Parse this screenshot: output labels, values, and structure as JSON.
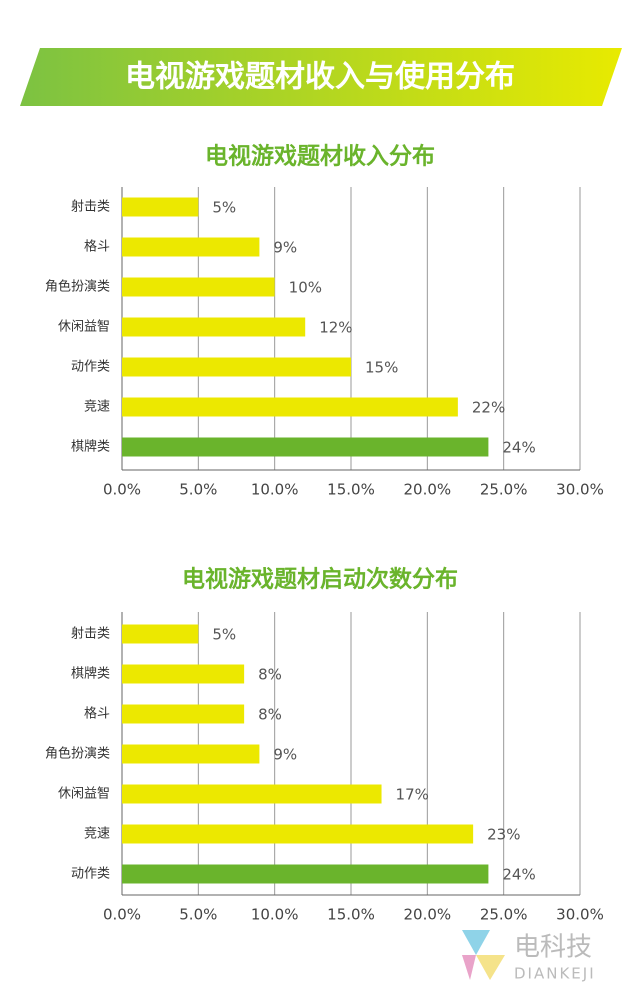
{
  "title": "电视游戏题材收入与使用分布",
  "logo": {
    "name": "电科技",
    "pinyin": "DIANKEJI"
  },
  "chart_data": [
    {
      "type": "bar",
      "orientation": "horizontal",
      "title": "电视游戏题材收入分布",
      "categories": [
        "射击类",
        "格斗",
        "角色扮演类",
        "休闲益智",
        "动作类",
        "竞速",
        "棋牌类"
      ],
      "values": [
        5,
        9,
        10,
        12,
        15,
        22,
        24
      ],
      "value_labels": [
        "5%",
        "9%",
        "10%",
        "12%",
        "15%",
        "22%",
        "24%"
      ],
      "colors": [
        "#ece800",
        "#ece800",
        "#ece800",
        "#ece800",
        "#ece800",
        "#ece800",
        "#6ab42c"
      ],
      "xlim": [
        0,
        30
      ],
      "xticks": [
        {
          "value": 0,
          "label": "0.0%"
        },
        {
          "value": 5,
          "label": "5.0%"
        },
        {
          "value": 10,
          "label": "10.0%"
        },
        {
          "value": 15,
          "label": "15.0%"
        },
        {
          "value": 20,
          "label": "20.0%"
        },
        {
          "value": 25,
          "label": "25.0%"
        },
        {
          "value": 30,
          "label": "30.0%"
        }
      ],
      "grid": true
    },
    {
      "type": "bar",
      "orientation": "horizontal",
      "title": "电视游戏题材启动次数分布",
      "categories": [
        "射击类",
        "棋牌类",
        "格斗",
        "角色扮演类",
        "休闲益智",
        "竞速",
        "动作类"
      ],
      "values": [
        5,
        8,
        8,
        9,
        17,
        23,
        24
      ],
      "value_labels": [
        "5%",
        "8%",
        "8%",
        "9%",
        "17%",
        "23%",
        "24%"
      ],
      "colors": [
        "#ece800",
        "#ece800",
        "#ece800",
        "#ece800",
        "#ece800",
        "#ece800",
        "#6ab42c"
      ],
      "xlim": [
        0,
        30
      ],
      "xticks": [
        {
          "value": 0,
          "label": "0.0%"
        },
        {
          "value": 5,
          "label": "5.0%"
        },
        {
          "value": 10,
          "label": "10.0%"
        },
        {
          "value": 15,
          "label": "15.0%"
        },
        {
          "value": 20,
          "label": "20.0%"
        },
        {
          "value": 25,
          "label": "25.0%"
        },
        {
          "value": 30,
          "label": "30.0%"
        }
      ],
      "grid": true
    }
  ]
}
